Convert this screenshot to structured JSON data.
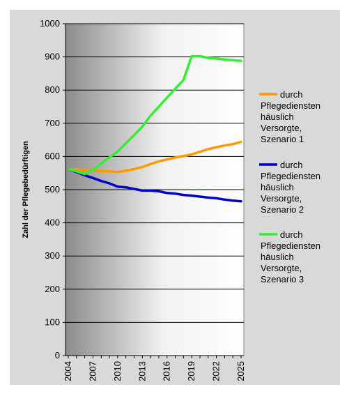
{
  "chart_data": {
    "type": "line",
    "title": "",
    "xlabel": "",
    "ylabel": "Zahl der Pflegebedürftigen",
    "ylim": [
      0,
      1000
    ],
    "xlim": [
      2004,
      2025
    ],
    "y_ticks": [
      "0",
      "100",
      "200",
      "300",
      "400",
      "500",
      "600",
      "700",
      "800",
      "900",
      "1000"
    ],
    "x_ticks": [
      "2004",
      "2007",
      "2010",
      "2013",
      "2016",
      "2019",
      "2022",
      "2025"
    ],
    "grid": "horizontal",
    "legend_position": "right",
    "x": [
      2004,
      2005,
      2006,
      2007,
      2008,
      2009,
      2010,
      2011,
      2012,
      2013,
      2014,
      2015,
      2016,
      2017,
      2018,
      2019,
      2020,
      2021,
      2022,
      2023,
      2024,
      2025
    ],
    "series": [
      {
        "name": "durch Pflegedienste häuslich Versorgte, Szenario 1",
        "legend_lines": [
          "durch",
          "Pflegediensten",
          "häuslich",
          "Versorgte,",
          "Szenario 1"
        ],
        "color": "#ff9900",
        "values": [
          562,
          561,
          559,
          558,
          556,
          555,
          553,
          557,
          562,
          568,
          577,
          585,
          591,
          597,
          601,
          606,
          614,
          622,
          628,
          633,
          637,
          644
        ]
      },
      {
        "name": "durch Pflegedienste häuslich Versorgte, Szenario 2",
        "legend_lines": [
          "durch",
          "Pflegediensten",
          "häuslich",
          "Versorgte,",
          "Szenario 2"
        ],
        "color": "#0000cc",
        "values": [
          562,
          553,
          543,
          535,
          526,
          519,
          509,
          507,
          502,
          497,
          497,
          495,
          490,
          488,
          484,
          482,
          479,
          476,
          474,
          470,
          467,
          465
        ]
      },
      {
        "name": "durch Pflegedienste häuslich Versorgte, Szenario 3",
        "legend_lines": [
          "durch",
          "Pflegediensten",
          "häuslich",
          "Versorgte,",
          "Szenario 3"
        ],
        "color": "#33ee33",
        "values": [
          562,
          555,
          547,
          560,
          578,
          597,
          615,
          640,
          664,
          690,
          723,
          750,
          777,
          804,
          830,
          902,
          902,
          897,
          895,
          892,
          890,
          888
        ]
      }
    ]
  }
}
